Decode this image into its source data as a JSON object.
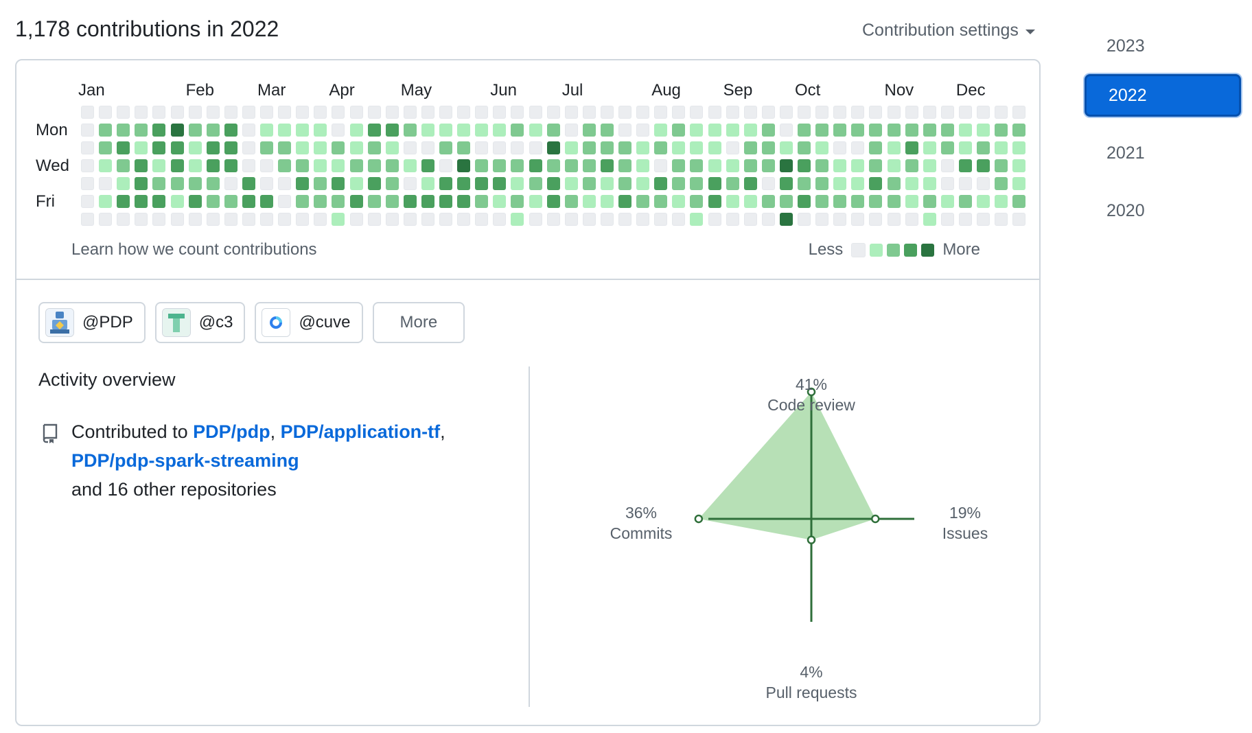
{
  "header": {
    "title": "1,178 contributions in 2022",
    "settings_label": "Contribution settings"
  },
  "graph": {
    "months": [
      "Jan",
      "Feb",
      "Mar",
      "Apr",
      "May",
      "Jun",
      "Jul",
      "Aug",
      "Sep",
      "Oct",
      "Nov",
      "Dec"
    ],
    "day_labels": [
      "Mon",
      "Wed",
      "Fri"
    ],
    "learn_link": "Learn how we count contributions",
    "legend_less": "Less",
    "legend_more": "More",
    "level_colors": [
      "#ebedf0",
      "#aceebb",
      "#7fc990",
      "#4aa05e",
      "#2a7440"
    ],
    "levels": [
      "00000000000000000000000000000000000000000000000000000",
      "02223422301111013321111121202200121111202222222221122",
      "02313313302211212100220000412221211102212100213121211",
      "01231313300221122213042223222321022112243211212103321",
      "00132222030032313201333312312121322323032211321100021",
      "01333132233022232233332121321132212311223222221212112",
      "00000000000000100000000010000000001000040000000100000"
    ]
  },
  "orgs": [
    {
      "handle": "@PDP",
      "icon": "pdp-org-avatar-icon"
    },
    {
      "handle": "@c3",
      "icon": "c3-org-avatar-icon"
    },
    {
      "handle": "@cuve",
      "icon": "cuve-org-avatar-icon"
    }
  ],
  "more_label": "More",
  "activity": {
    "title": "Activity overview",
    "prefix": "Contributed to",
    "repos": [
      "PDP/pdp",
      "PDP/application-tf",
      "PDP/pdp-spark-streaming"
    ],
    "suffix": "and 16 other repositories",
    "icon": "repo-icon"
  },
  "radar": {
    "axes": [
      {
        "pct": "41%",
        "label": "Code review",
        "value": 41
      },
      {
        "pct": "19%",
        "label": "Issues",
        "value": 19
      },
      {
        "pct": "4%",
        "label": "Pull requests",
        "value": 4
      },
      {
        "pct": "36%",
        "label": "Commits",
        "value": 36
      }
    ],
    "fill_color": "#aadba9",
    "line_color": "#2f6f3a"
  },
  "years": [
    "2023",
    "2022",
    "2021",
    "2020"
  ],
  "selected_year": "2022"
}
